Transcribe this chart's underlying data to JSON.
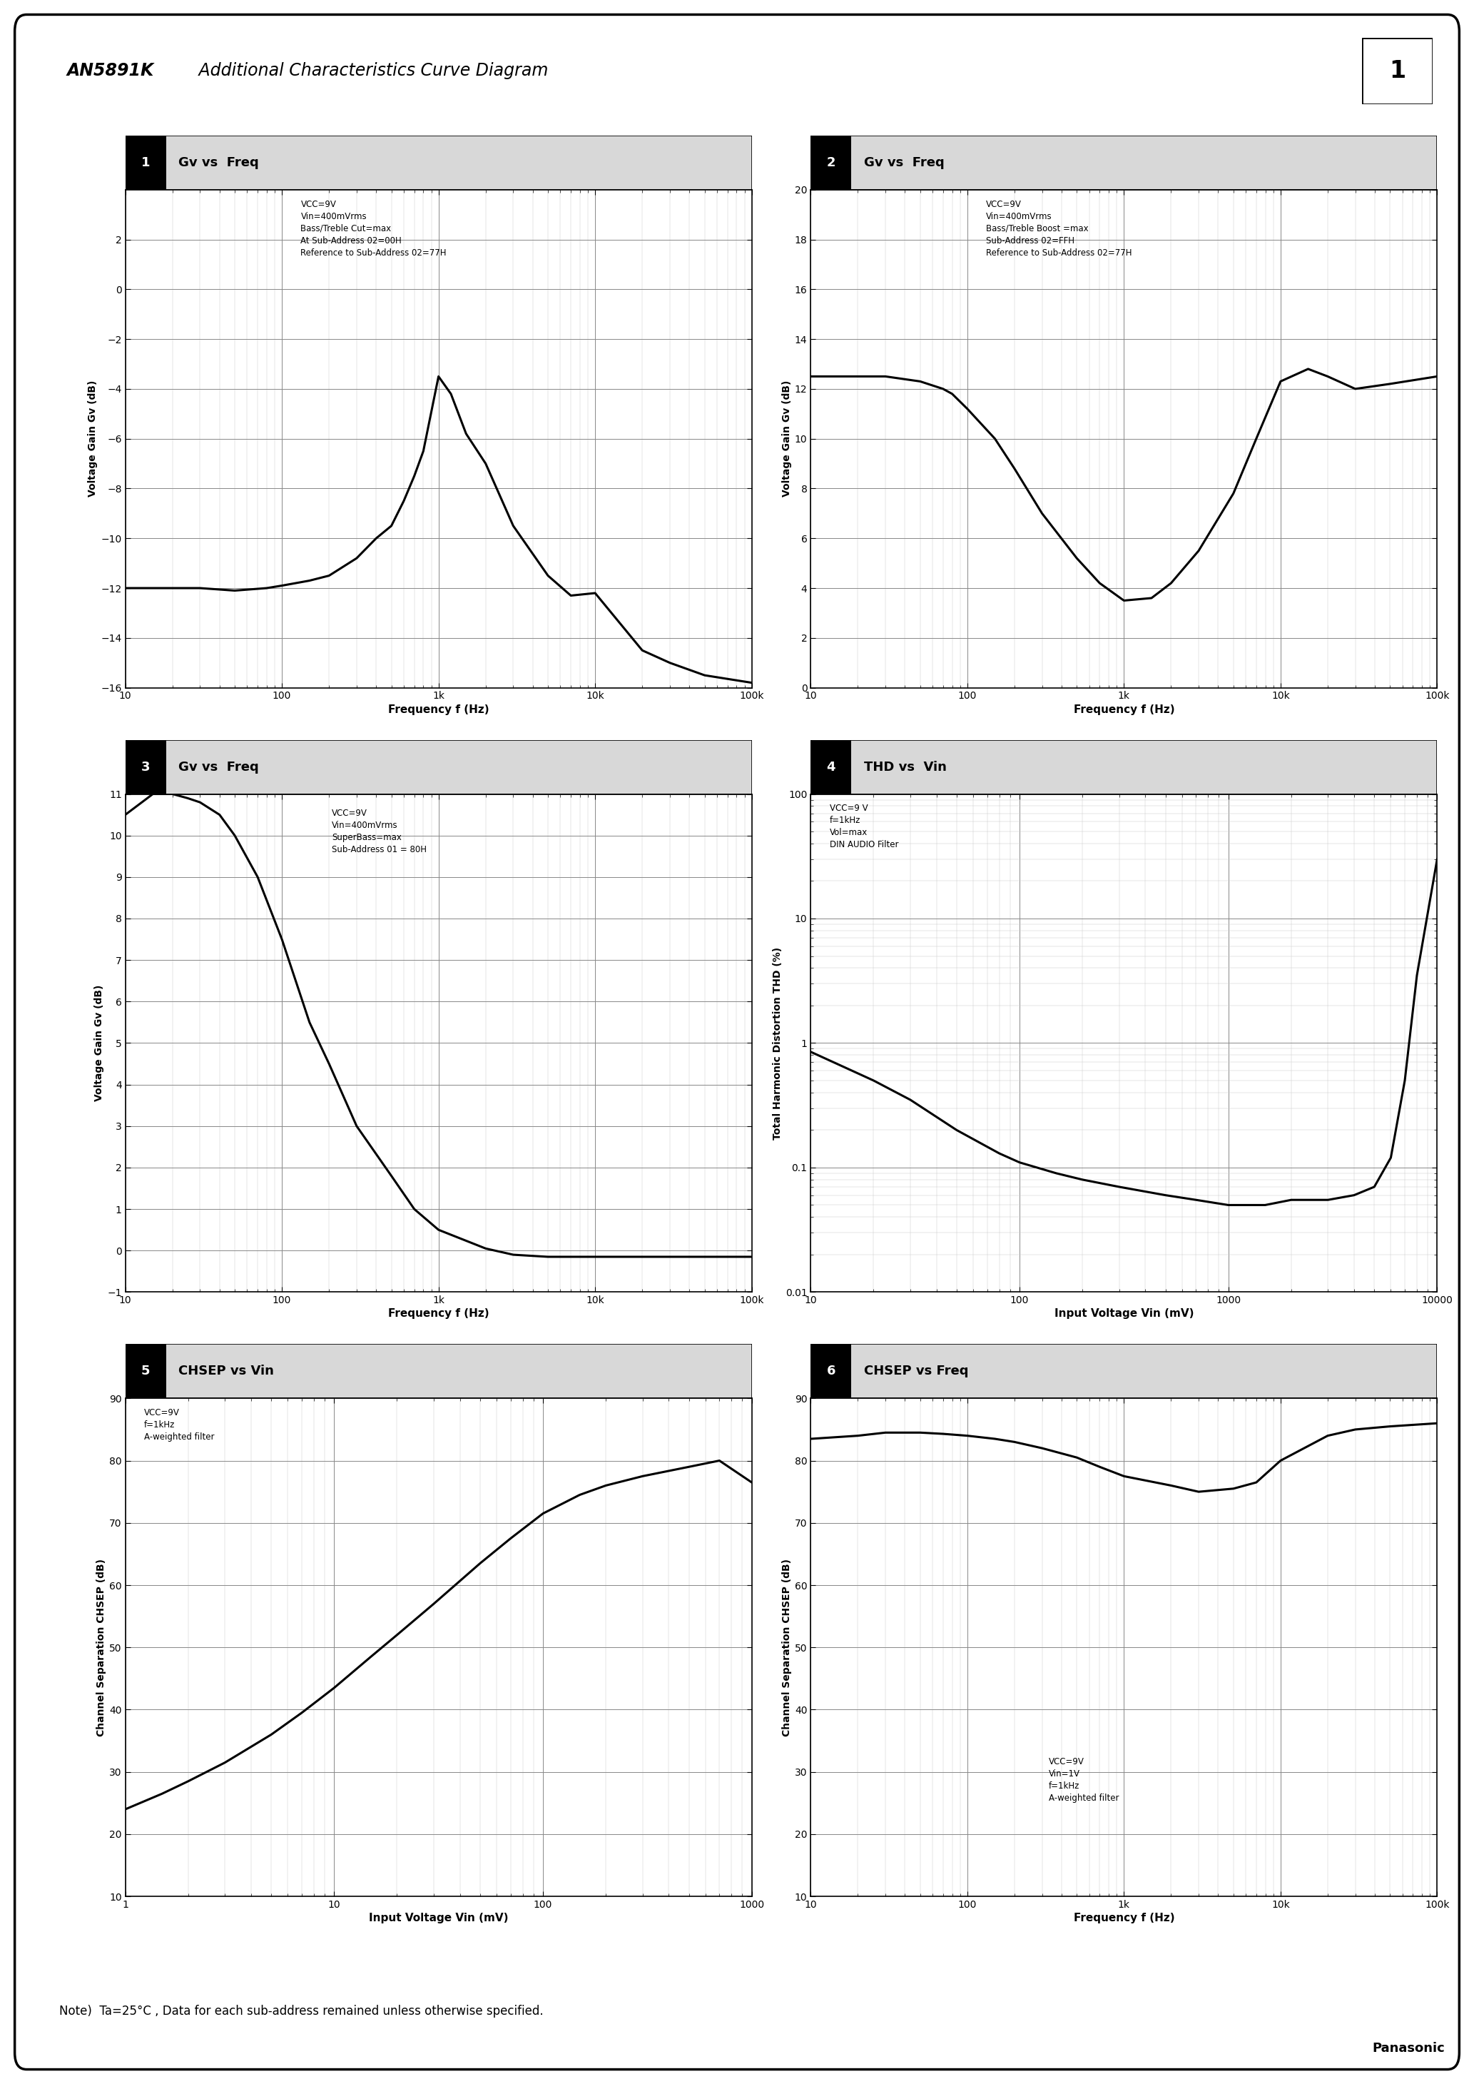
{
  "title_bold": "AN5891K",
  "title_italic": " Additional Characteristics Curve Diagram",
  "page_number": "1",
  "note": "Note)  Ta=25°C , Data for each sub-address remained unless otherwise specified.",
  "panasonic": "Panasonic",
  "chart1": {
    "title_num": "1",
    "title": "Gv vs  Freq",
    "xlabel": "Frequency f (Hz)",
    "ylabel": "Voltage Gain Gv (dB)",
    "annotation": "VCC=9V\nVin=400mVrms\nBass/Treble Cut=max\nAt Sub-Address 02=00H\nReference to Sub-Address 02=77H",
    "xlim": [
      10,
      100000
    ],
    "ylim": [
      -16,
      4
    ],
    "yticks": [
      2,
      0,
      -2,
      -4,
      -6,
      -8,
      -10,
      -12,
      -14,
      -16
    ],
    "xticks": [
      10,
      100,
      1000,
      10000,
      100000
    ],
    "xticklabels": [
      "10",
      "100",
      "1k",
      "10k",
      "100k"
    ],
    "curve_x": [
      10,
      20,
      30,
      50,
      80,
      100,
      150,
      200,
      300,
      400,
      500,
      600,
      700,
      800,
      1000,
      1200,
      1500,
      2000,
      3000,
      5000,
      7000,
      10000,
      20000,
      30000,
      50000,
      100000
    ],
    "curve_y": [
      -12.0,
      -12.0,
      -12.0,
      -12.1,
      -12.0,
      -11.9,
      -11.7,
      -11.5,
      -10.8,
      -10.0,
      -9.5,
      -8.5,
      -7.5,
      -6.5,
      -3.5,
      -4.2,
      -5.8,
      -7.0,
      -9.5,
      -11.5,
      -12.3,
      -12.2,
      -14.5,
      -15.0,
      -15.5,
      -15.8
    ]
  },
  "chart2": {
    "title_num": "2",
    "title": "Gv vs  Freq",
    "xlabel": "Frequency f (Hz)",
    "ylabel": "Voltage Gain Gv (dB)",
    "annotation": "VCC=9V\nVin=400mVrms\nBass/Treble Boost =max\nSub-Address 02=FFH\nReference to Sub-Address 02=77H",
    "xlim": [
      10,
      100000
    ],
    "ylim": [
      0,
      20
    ],
    "yticks": [
      0,
      2,
      4,
      6,
      8,
      10,
      12,
      14,
      16,
      18,
      20
    ],
    "xticks": [
      10,
      100,
      1000,
      10000,
      100000
    ],
    "xticklabels": [
      "10",
      "100",
      "1k",
      "10k",
      "100k"
    ],
    "curve_x": [
      10,
      20,
      30,
      50,
      70,
      80,
      100,
      150,
      200,
      300,
      500,
      700,
      1000,
      1500,
      2000,
      3000,
      5000,
      7000,
      10000,
      15000,
      20000,
      30000,
      50000,
      100000
    ],
    "curve_y": [
      12.5,
      12.5,
      12.5,
      12.3,
      12.0,
      11.8,
      11.2,
      10.0,
      8.8,
      7.0,
      5.2,
      4.2,
      3.5,
      3.6,
      4.2,
      5.5,
      7.8,
      10.0,
      12.3,
      12.8,
      12.5,
      12.0,
      12.2,
      12.5
    ]
  },
  "chart3": {
    "title_num": "3",
    "title": "Gv vs  Freq",
    "xlabel": "Frequency f (Hz)",
    "ylabel": "Voltage Gain Gv (dB)",
    "annotation": "VCC=9V\nVin=400mVrms\nSuperBass=max\nSub-Address 01 = 80H",
    "xlim": [
      10,
      100000
    ],
    "ylim": [
      -1,
      11
    ],
    "yticks": [
      -1,
      0,
      1,
      2,
      3,
      4,
      5,
      6,
      7,
      8,
      9,
      10,
      11
    ],
    "xticks": [
      10,
      100,
      1000,
      10000,
      100000
    ],
    "xticklabels": [
      "10",
      "100",
      "1k",
      "10k",
      "100k"
    ],
    "curve_x": [
      10,
      15,
      20,
      25,
      30,
      40,
      50,
      70,
      100,
      150,
      200,
      300,
      500,
      700,
      1000,
      2000,
      3000,
      5000,
      7000,
      10000,
      20000,
      50000,
      100000
    ],
    "curve_y": [
      10.5,
      11.0,
      11.0,
      10.9,
      10.8,
      10.5,
      10.0,
      9.0,
      7.5,
      5.5,
      4.5,
      3.0,
      1.8,
      1.0,
      0.5,
      0.05,
      -0.1,
      -0.15,
      -0.15,
      -0.15,
      -0.15,
      -0.15,
      -0.15
    ]
  },
  "chart4": {
    "title_num": "4",
    "title": "THD vs  Vin",
    "xlabel": "Input Voltage Vin (mV)",
    "ylabel": "Total Harmonic Distortion THD (%)",
    "annotation": "VCC=9 V\nf=1kHz\nVol=max\nDIN AUDIO Filter",
    "xlim": [
      10,
      10000
    ],
    "ylim_log": [
      0.01,
      100
    ],
    "xticks": [
      10,
      100,
      1000,
      10000
    ],
    "xticklabels": [
      "10",
      "100",
      "1000",
      "10000"
    ],
    "yticks": [
      0.01,
      0.1,
      1,
      10,
      100
    ],
    "yticklabels": [
      "0.01",
      "0.1",
      "1",
      "10",
      "100"
    ],
    "curve_x": [
      10,
      20,
      30,
      50,
      80,
      100,
      150,
      200,
      300,
      500,
      700,
      1000,
      1500,
      2000,
      3000,
      4000,
      5000,
      6000,
      7000,
      8000,
      10000
    ],
    "curve_y": [
      0.85,
      0.5,
      0.35,
      0.2,
      0.13,
      0.11,
      0.09,
      0.08,
      0.07,
      0.06,
      0.055,
      0.05,
      0.05,
      0.055,
      0.055,
      0.06,
      0.07,
      0.12,
      0.5,
      3.5,
      30.0
    ]
  },
  "chart5": {
    "title_num": "5",
    "title": "CHSEP vs Vin",
    "xlabel": "Input Voltage Vin (mV)",
    "ylabel": "Channel Separation CHSEP (dB)",
    "annotation": "VCC=9V\nf=1kHz\nA-weighted filter",
    "xlim": [
      1,
      1000
    ],
    "ylim": [
      10,
      90
    ],
    "yticks": [
      10,
      20,
      30,
      40,
      50,
      60,
      70,
      80,
      90
    ],
    "xticks": [
      1,
      10,
      100,
      1000
    ],
    "xticklabels": [
      "1",
      "10",
      "100",
      "1000"
    ],
    "curve_x": [
      1,
      1.5,
      2,
      3,
      5,
      7,
      10,
      15,
      20,
      30,
      50,
      70,
      100,
      150,
      200,
      300,
      500,
      700,
      1000
    ],
    "curve_y": [
      24.0,
      26.5,
      28.5,
      31.5,
      36.0,
      39.5,
      43.5,
      48.5,
      52.0,
      57.0,
      63.5,
      67.5,
      71.5,
      74.5,
      76.0,
      77.5,
      79.0,
      80.0,
      76.5
    ]
  },
  "chart6": {
    "title_num": "6",
    "title": "CHSEP vs Freq",
    "xlabel": "Frequency f (Hz)",
    "ylabel": "Channel Separation CHSEP (dB)",
    "annotation": "VCC=9V\nVin=1V\nf=1kHz\nA-weighted filter",
    "xlim": [
      10,
      100000
    ],
    "ylim": [
      10,
      90
    ],
    "yticks": [
      10,
      20,
      30,
      40,
      50,
      60,
      70,
      80,
      90
    ],
    "xticks": [
      10,
      100,
      1000,
      10000,
      100000
    ],
    "xticklabels": [
      "10",
      "100",
      "1k",
      "10k",
      "100k"
    ],
    "curve_x": [
      10,
      20,
      30,
      50,
      70,
      100,
      150,
      200,
      300,
      500,
      700,
      1000,
      2000,
      3000,
      5000,
      7000,
      10000,
      20000,
      30000,
      50000,
      100000
    ],
    "curve_y": [
      83.5,
      84.0,
      84.5,
      84.5,
      84.3,
      84.0,
      83.5,
      83.0,
      82.0,
      80.5,
      79.0,
      77.5,
      76.0,
      75.0,
      75.5,
      76.5,
      80.0,
      84.0,
      85.0,
      85.5,
      86.0
    ]
  },
  "bg_color": "#ffffff",
  "grid_major_color": "#888888",
  "grid_minor_color": "#cccccc",
  "curve_color": "#000000",
  "title_bg": "#d8d8d8"
}
